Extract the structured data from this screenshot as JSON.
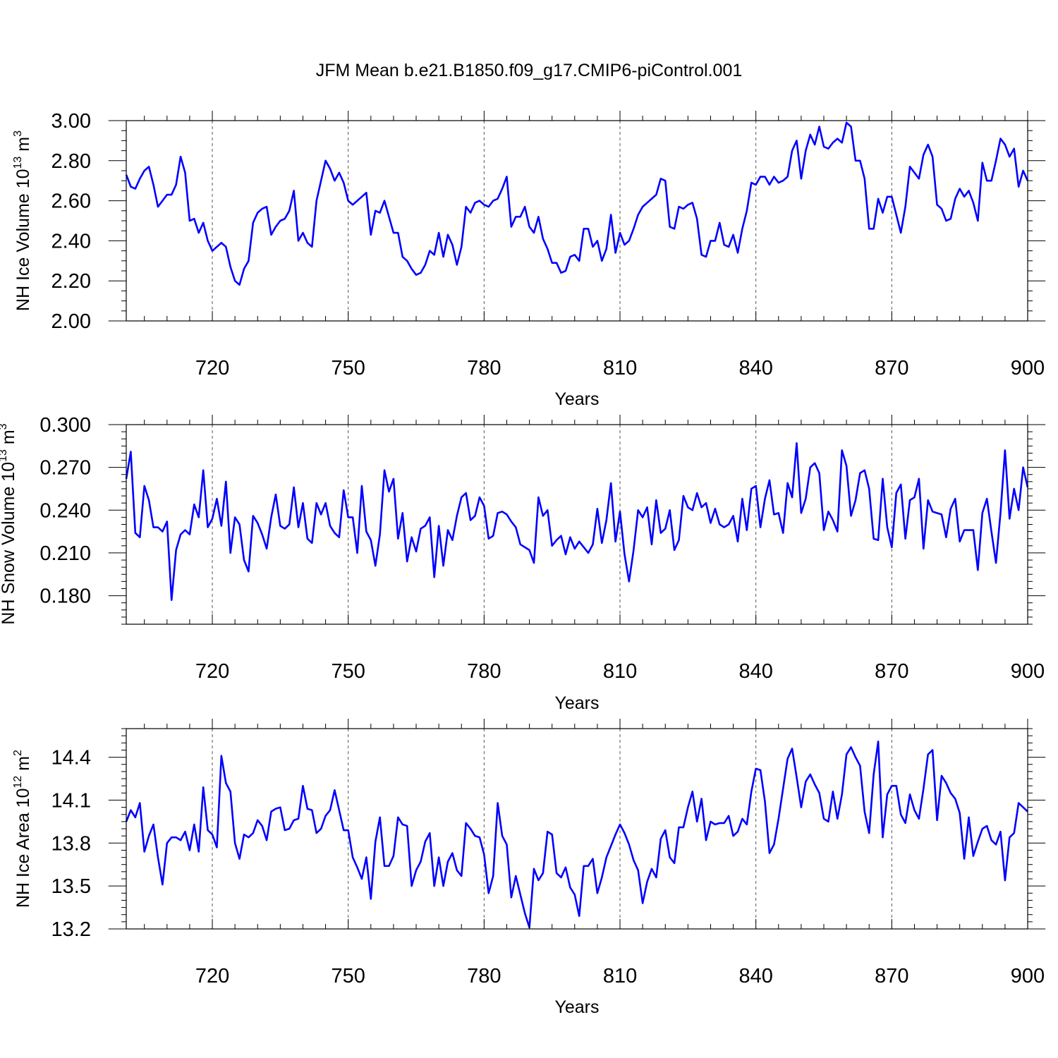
{
  "title": "JFM Mean b.e21.B1850.f09_g17.CMIP6-piControl.001",
  "colors": {
    "line": "#0000ff",
    "axis": "#000000",
    "grid": "#555555"
  },
  "chart_data": [
    {
      "type": "line",
      "name": "ice-volume",
      "ylabel_base": "NH Ice Volume 10",
      "ylabel_exp": "13",
      "ylabel_unit": " m",
      "ylabel_unit_exp": "3",
      "xlabel": "Years",
      "xlim": [
        701,
        900
      ],
      "ylim": [
        2.0,
        3.0
      ],
      "xticks": [
        720,
        750,
        780,
        810,
        840,
        870,
        900
      ],
      "yticks": [
        2.0,
        2.2,
        2.4,
        2.6,
        2.8,
        3.0
      ],
      "ytick_labels": [
        "2.00",
        "2.20",
        "2.40",
        "2.60",
        "2.80",
        "3.00"
      ],
      "yminor_step": 0.05,
      "series": [
        {
          "name": "NH Ice Volume",
          "x_start": 701,
          "values": [
            2.73,
            2.67,
            2.66,
            2.71,
            2.75,
            2.77,
            2.68,
            2.57,
            2.6,
            2.63,
            2.63,
            2.68,
            2.82,
            2.74,
            2.5,
            2.51,
            2.44,
            2.49,
            2.4,
            2.35,
            2.37,
            2.39,
            2.37,
            2.27,
            2.2,
            2.18,
            2.26,
            2.3,
            2.49,
            2.54,
            2.56,
            2.57,
            2.43,
            2.47,
            2.5,
            2.51,
            2.55,
            2.65,
            2.4,
            2.44,
            2.39,
            2.37,
            2.6,
            2.7,
            2.8,
            2.76,
            2.7,
            2.74,
            2.69,
            2.6,
            2.58,
            2.6,
            2.62,
            2.64,
            2.43,
            2.55,
            2.54,
            2.6,
            2.52,
            2.44,
            2.44,
            2.32,
            2.3,
            2.26,
            2.23,
            2.24,
            2.28,
            2.35,
            2.33,
            2.44,
            2.32,
            2.43,
            2.38,
            2.28,
            2.37,
            2.57,
            2.54,
            2.59,
            2.6,
            2.58,
            2.57,
            2.6,
            2.61,
            2.66,
            2.72,
            2.47,
            2.52,
            2.52,
            2.57,
            2.47,
            2.44,
            2.52,
            2.41,
            2.36,
            2.29,
            2.29,
            2.24,
            2.25,
            2.32,
            2.33,
            2.3,
            2.46,
            2.46,
            2.37,
            2.4,
            2.3,
            2.36,
            2.53,
            2.34,
            2.44,
            2.38,
            2.4,
            2.46,
            2.53,
            2.57,
            2.59,
            2.61,
            2.63,
            2.71,
            2.7,
            2.47,
            2.46,
            2.57,
            2.56,
            2.58,
            2.59,
            2.51,
            2.33,
            2.32,
            2.4,
            2.4,
            2.49,
            2.38,
            2.37,
            2.43,
            2.34,
            2.46,
            2.55,
            2.69,
            2.68,
            2.72,
            2.72,
            2.68,
            2.72,
            2.69,
            2.7,
            2.72,
            2.85,
            2.9,
            2.71,
            2.85,
            2.93,
            2.88,
            2.97,
            2.87,
            2.86,
            2.89,
            2.91,
            2.89,
            2.99,
            2.97,
            2.8,
            2.8,
            2.71,
            2.46,
            2.46,
            2.61,
            2.54,
            2.62,
            2.62,
            2.53,
            2.44,
            2.57,
            2.77,
            2.74,
            2.71,
            2.83,
            2.88,
            2.82,
            2.58,
            2.56,
            2.5,
            2.51,
            2.61,
            2.66,
            2.62,
            2.65,
            2.59,
            2.5,
            2.79,
            2.7,
            2.7,
            2.8,
            2.91,
            2.88,
            2.82,
            2.86,
            2.67,
            2.75,
            2.7
          ]
        }
      ]
    },
    {
      "type": "line",
      "name": "snow-volume",
      "ylabel_base": "NH Snow Volume 10",
      "ylabel_exp": "13",
      "ylabel_unit": " m",
      "ylabel_unit_exp": "3",
      "xlabel": "Years",
      "xlim": [
        701,
        900
      ],
      "ylim": [
        0.16,
        0.3
      ],
      "xticks": [
        720,
        750,
        780,
        810,
        840,
        870,
        900
      ],
      "yticks": [
        0.18,
        0.21,
        0.24,
        0.27,
        0.3
      ],
      "ytick_labels": [
        "0.180",
        "0.210",
        "0.240",
        "0.270",
        "0.300"
      ],
      "yminor_step": 0.005,
      "series": [
        {
          "name": "NH Snow Volume",
          "x_start": 701,
          "values": [
            0.262,
            0.281,
            0.224,
            0.221,
            0.257,
            0.247,
            0.228,
            0.228,
            0.225,
            0.232,
            0.177,
            0.212,
            0.223,
            0.226,
            0.223,
            0.244,
            0.235,
            0.268,
            0.228,
            0.234,
            0.248,
            0.229,
            0.26,
            0.21,
            0.235,
            0.23,
            0.205,
            0.197,
            0.236,
            0.231,
            0.223,
            0.213,
            0.235,
            0.251,
            0.229,
            0.227,
            0.23,
            0.256,
            0.228,
            0.245,
            0.22,
            0.217,
            0.245,
            0.237,
            0.245,
            0.229,
            0.224,
            0.221,
            0.254,
            0.235,
            0.235,
            0.21,
            0.257,
            0.225,
            0.219,
            0.201,
            0.223,
            0.268,
            0.253,
            0.262,
            0.22,
            0.238,
            0.204,
            0.221,
            0.211,
            0.227,
            0.229,
            0.235,
            0.193,
            0.229,
            0.201,
            0.226,
            0.219,
            0.236,
            0.249,
            0.252,
            0.233,
            0.236,
            0.249,
            0.243,
            0.22,
            0.222,
            0.238,
            0.239,
            0.237,
            0.232,
            0.228,
            0.216,
            0.214,
            0.212,
            0.203,
            0.249,
            0.236,
            0.24,
            0.215,
            0.219,
            0.222,
            0.209,
            0.221,
            0.213,
            0.218,
            0.214,
            0.21,
            0.216,
            0.241,
            0.217,
            0.233,
            0.259,
            0.218,
            0.239,
            0.209,
            0.19,
            0.212,
            0.24,
            0.235,
            0.242,
            0.216,
            0.247,
            0.224,
            0.227,
            0.24,
            0.212,
            0.219,
            0.25,
            0.242,
            0.24,
            0.252,
            0.242,
            0.245,
            0.231,
            0.241,
            0.23,
            0.228,
            0.23,
            0.236,
            0.218,
            0.248,
            0.226,
            0.255,
            0.257,
            0.228,
            0.248,
            0.261,
            0.237,
            0.238,
            0.224,
            0.259,
            0.249,
            0.287,
            0.238,
            0.248,
            0.27,
            0.273,
            0.266,
            0.226,
            0.239,
            0.233,
            0.225,
            0.282,
            0.271,
            0.236,
            0.247,
            0.266,
            0.268,
            0.255,
            0.22,
            0.219,
            0.262,
            0.228,
            0.214,
            0.252,
            0.258,
            0.22,
            0.247,
            0.249,
            0.262,
            0.213,
            0.247,
            0.239,
            0.238,
            0.237,
            0.221,
            0.241,
            0.248,
            0.218,
            0.226,
            0.226,
            0.226,
            0.198,
            0.238,
            0.248,
            0.225,
            0.203,
            0.238,
            0.282,
            0.234,
            0.255,
            0.24,
            0.27,
            0.256
          ]
        }
      ]
    },
    {
      "type": "line",
      "name": "ice-area",
      "ylabel_base": "NH Ice Area 10",
      "ylabel_exp": "12",
      "ylabel_unit": " m",
      "ylabel_unit_exp": "2",
      "xlabel": "Years",
      "xlim": [
        701,
        900
      ],
      "ylim": [
        13.2,
        14.6
      ],
      "xticks": [
        720,
        750,
        780,
        810,
        840,
        870,
        900
      ],
      "yticks": [
        13.2,
        13.5,
        13.8,
        14.1,
        14.4
      ],
      "ytick_labels": [
        "13.2",
        "13.5",
        "13.8",
        "14.1",
        "14.4"
      ],
      "yminor_step": 0.05,
      "series": [
        {
          "name": "NH Ice Area",
          "x_start": 701,
          "values": [
            13.95,
            14.03,
            13.98,
            14.08,
            13.74,
            13.85,
            13.93,
            13.7,
            13.51,
            13.8,
            13.84,
            13.84,
            13.82,
            13.88,
            13.75,
            13.93,
            13.74,
            14.19,
            13.89,
            13.86,
            13.77,
            14.41,
            14.22,
            14.16,
            13.8,
            13.69,
            13.86,
            13.84,
            13.87,
            13.96,
            13.92,
            13.82,
            14.02,
            14.04,
            14.05,
            13.89,
            13.9,
            13.96,
            13.97,
            14.2,
            14.04,
            14.03,
            13.87,
            13.9,
            13.99,
            14.03,
            14.17,
            14.03,
            13.89,
            13.89,
            13.7,
            13.63,
            13.55,
            13.7,
            13.41,
            13.81,
            13.98,
            13.64,
            13.64,
            13.71,
            13.98,
            13.93,
            13.92,
            13.5,
            13.61,
            13.67,
            13.81,
            13.87,
            13.5,
            13.7,
            13.5,
            13.67,
            13.73,
            13.61,
            13.57,
            13.94,
            13.9,
            13.85,
            13.84,
            13.72,
            13.45,
            13.57,
            14.08,
            13.85,
            13.79,
            13.42,
            13.57,
            13.44,
            13.31,
            13.21,
            13.62,
            13.54,
            13.59,
            13.88,
            13.86,
            13.59,
            13.56,
            13.63,
            13.49,
            13.44,
            13.29,
            13.64,
            13.64,
            13.69,
            13.45,
            13.56,
            13.7,
            13.78,
            13.86,
            13.93,
            13.87,
            13.79,
            13.68,
            13.61,
            13.38,
            13.53,
            13.62,
            13.56,
            13.83,
            13.89,
            13.7,
            13.66,
            13.91,
            13.91,
            14.05,
            14.16,
            13.95,
            14.11,
            13.82,
            13.95,
            13.93,
            13.94,
            13.94,
            13.99,
            13.85,
            13.88,
            13.97,
            13.93,
            14.16,
            14.32,
            14.31,
            14.09,
            13.73,
            13.79,
            13.97,
            14.18,
            14.39,
            14.46,
            14.26,
            14.05,
            14.23,
            14.28,
            14.21,
            14.15,
            13.97,
            13.95,
            14.16,
            13.97,
            14.14,
            14.42,
            14.47,
            14.4,
            14.34,
            14.02,
            13.87,
            14.28,
            14.51,
            13.84,
            14.14,
            14.2,
            14.2,
            14.0,
            13.94,
            14.14,
            14.03,
            13.97,
            14.18,
            14.42,
            14.45,
            13.96,
            14.27,
            14.22,
            14.15,
            14.11,
            14.01,
            13.69,
            13.98,
            13.71,
            13.81,
            13.9,
            13.92,
            13.82,
            13.79,
            13.88,
            13.54,
            13.84,
            13.87,
            14.08,
            14.05,
            14.02
          ]
        }
      ]
    }
  ]
}
